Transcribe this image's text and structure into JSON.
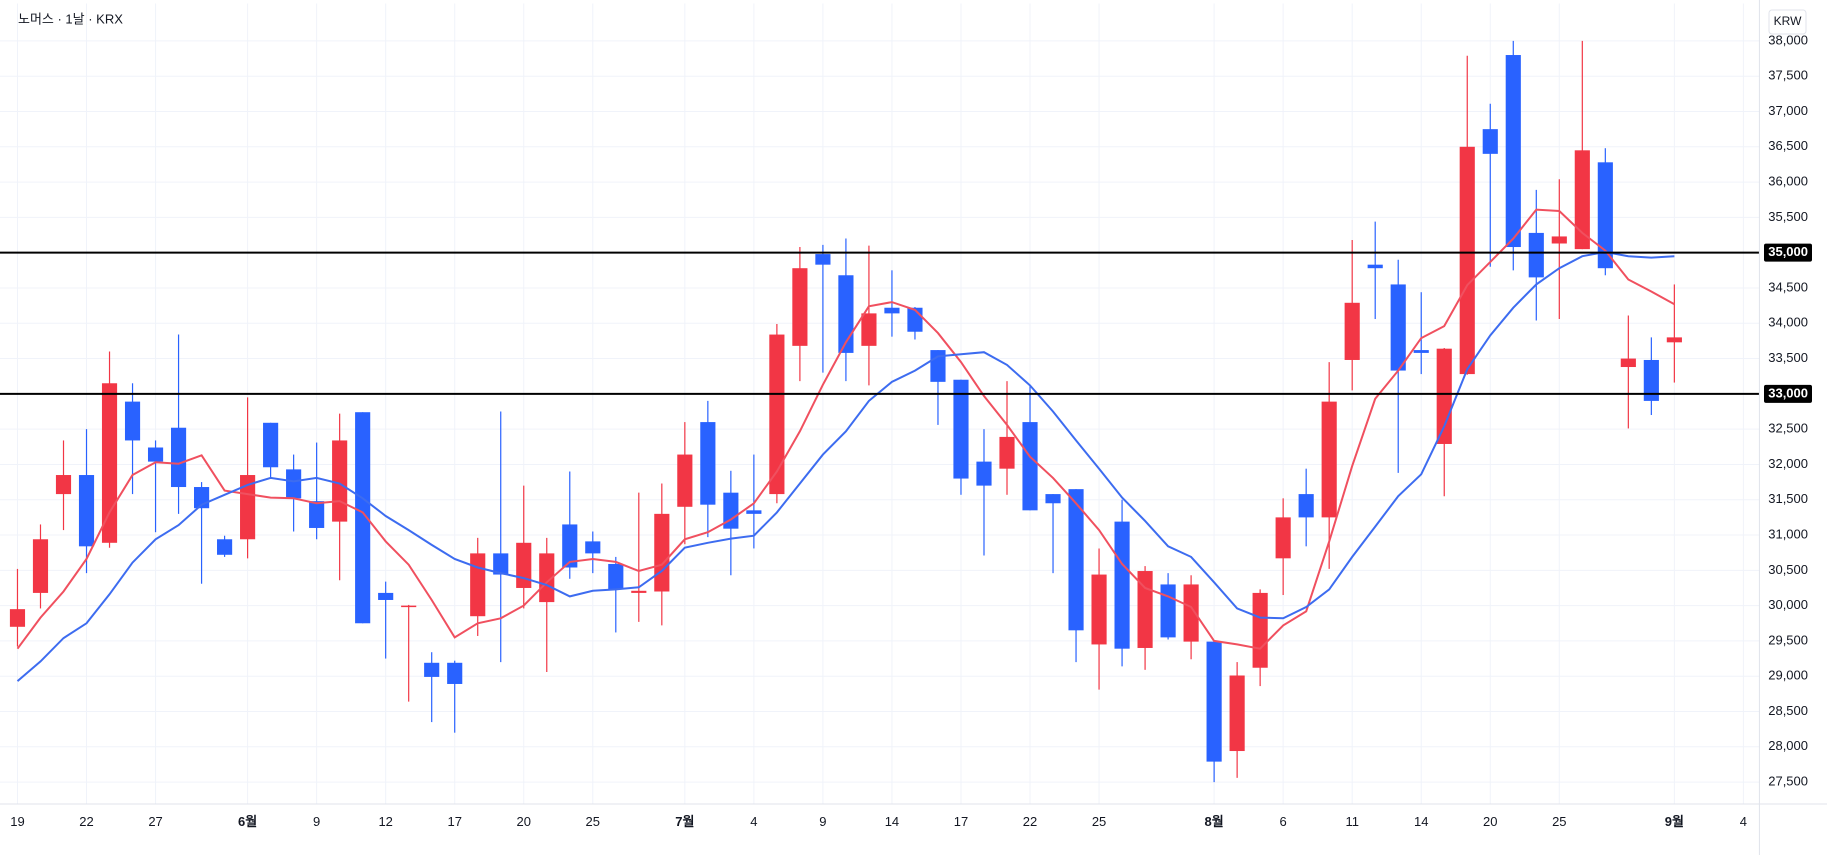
{
  "chart_data": {
    "type": "candlestick",
    "title": "노머스 · 1날 · KRX",
    "currency": "KRW",
    "up_color": "#f23645",
    "down_color": "#2962ff",
    "grid": true,
    "ylim": [
      27190,
      38530
    ],
    "yticks": [
      {
        "value": 27500,
        "label": "27,500"
      },
      {
        "value": 28000,
        "label": "28,000"
      },
      {
        "value": 28500,
        "label": "28,500"
      },
      {
        "value": 29000,
        "label": "29,000"
      },
      {
        "value": 29500,
        "label": "29,500"
      },
      {
        "value": 30000,
        "label": "30,000"
      },
      {
        "value": 30500,
        "label": "30,500"
      },
      {
        "value": 31000,
        "label": "31,000"
      },
      {
        "value": 31500,
        "label": "31,500"
      },
      {
        "value": 32000,
        "label": "32,000"
      },
      {
        "value": 32500,
        "label": "32,500"
      },
      {
        "value": 33000,
        "label": "33,000"
      },
      {
        "value": 33500,
        "label": "33,500"
      },
      {
        "value": 34000,
        "label": "34,000"
      },
      {
        "value": 34500,
        "label": "34,500"
      },
      {
        "value": 35000,
        "label": "35,000"
      },
      {
        "value": 35500,
        "label": "35,500"
      },
      {
        "value": 36000,
        "label": "36,000"
      },
      {
        "value": 36500,
        "label": "36,500"
      },
      {
        "value": 37000,
        "label": "37,000"
      },
      {
        "value": 37500,
        "label": "37,500"
      },
      {
        "value": 38000,
        "label": "38,000"
      }
    ],
    "xticks": [
      {
        "value": 0,
        "label": "19"
      },
      {
        "value": 3,
        "label": "22"
      },
      {
        "value": 6,
        "label": "27"
      },
      {
        "value": 10,
        "label": "6월"
      },
      {
        "value": 13,
        "label": "9"
      },
      {
        "value": 16,
        "label": "12"
      },
      {
        "value": 19,
        "label": "17"
      },
      {
        "value": 22,
        "label": "20"
      },
      {
        "value": 25,
        "label": "25"
      },
      {
        "value": 29,
        "label": "7월"
      },
      {
        "value": 32,
        "label": "4"
      },
      {
        "value": 35,
        "label": "9"
      },
      {
        "value": 38,
        "label": "14"
      },
      {
        "value": 41,
        "label": "17"
      },
      {
        "value": 44,
        "label": "22"
      },
      {
        "value": 47,
        "label": "25"
      },
      {
        "value": 52,
        "label": "8월"
      },
      {
        "value": 55,
        "label": "6"
      },
      {
        "value": 58,
        "label": "11"
      },
      {
        "value": 61,
        "label": "14"
      },
      {
        "value": 64,
        "label": "20"
      },
      {
        "value": 67,
        "label": "25"
      },
      {
        "value": 72,
        "label": "9월"
      },
      {
        "value": 75,
        "label": "4"
      }
    ],
    "horizontal_lines": [
      {
        "value": 35000,
        "label": "35,000"
      },
      {
        "value": 33000,
        "label": "33,000"
      }
    ],
    "open": [
      29700,
      30180,
      31580,
      31850,
      30890,
      32890,
      32240,
      32520,
      31680,
      30940,
      30940,
      32590,
      31930,
      31480,
      31190,
      32740,
      30180,
      29980,
      29190,
      29190,
      29850,
      30740,
      30250,
      30050,
      31150,
      30910,
      30590,
      30180,
      30200,
      31400,
      32600,
      31600,
      31350,
      31580,
      33680,
      34980,
      34680,
      33680,
      34220,
      34220,
      33620,
      33200,
      32040,
      31940,
      32600,
      31580,
      31650,
      29450,
      31190,
      29400,
      30300,
      29490,
      29490,
      27940,
      29120,
      30670,
      31580,
      31250,
      33480,
      34830,
      34550,
      33620,
      32290,
      33280,
      36750,
      37800,
      35280,
      35130,
      35050,
      36280,
      33380,
      33480,
      33730
    ],
    "high": [
      30520,
      31150,
      32340,
      32500,
      33600,
      33150,
      32340,
      33840,
      31750,
      30990,
      32950,
      32590,
      32140,
      32310,
      32720,
      32740,
      30340,
      30010,
      29340,
      29220,
      30960,
      32750,
      31700,
      30960,
      31900,
      31050,
      30690,
      31600,
      31730,
      32600,
      32900,
      31910,
      32140,
      33990,
      35080,
      35110,
      35200,
      35100,
      34750,
      34230,
      33620,
      33200,
      32500,
      33180,
      33130,
      31580,
      31650,
      30810,
      31500,
      30560,
      30460,
      30430,
      29490,
      29200,
      30230,
      31520,
      31940,
      33450,
      35180,
      35440,
      34900,
      34440,
      33650,
      37790,
      37110,
      38000,
      35890,
      36040,
      38000,
      36480,
      34110,
      33800,
      34550
    ],
    "low": [
      29420,
      29960,
      31070,
      30460,
      30820,
      31580,
      31040,
      31300,
      30310,
      30690,
      30670,
      31810,
      31050,
      30940,
      30360,
      29750,
      29250,
      28640,
      28350,
      28200,
      29570,
      29200,
      29960,
      29060,
      30380,
      30460,
      29620,
      29770,
      29720,
      30870,
      30970,
      30430,
      30810,
      31450,
      33180,
      33300,
      33180,
      33120,
      33810,
      33770,
      32560,
      31570,
      30710,
      31570,
      31350,
      30460,
      29200,
      28810,
      29140,
      29090,
      29520,
      29240,
      27500,
      27560,
      28860,
      30150,
      30840,
      30520,
      33050,
      34060,
      31880,
      33280,
      31550,
      33270,
      34800,
      34750,
      34040,
      34060,
      35050,
      34680,
      32510,
      32700,
      33160
    ],
    "close": [
      29950,
      30940,
      31850,
      30840,
      33150,
      32340,
      32040,
      31680,
      31380,
      30720,
      31850,
      31960,
      31520,
      31100,
      32340,
      29750,
      30080,
      30000,
      28990,
      28890,
      30740,
      30440,
      30890,
      30740,
      30540,
      30740,
      30230,
      30210,
      31300,
      32140,
      31430,
      31090,
      31300,
      33840,
      34780,
      34830,
      33580,
      34140,
      34140,
      33880,
      33170,
      31800,
      31700,
      32390,
      31350,
      31450,
      29650,
      30440,
      29390,
      30490,
      29550,
      30300,
      27790,
      29010,
      30180,
      31250,
      31250,
      32890,
      34290,
      34780,
      33330,
      33580,
      33640,
      36500,
      36400,
      35080,
      34650,
      35230,
      36450,
      34780,
      33500,
      32900,
      33800
    ],
    "moving_averages": [
      {
        "color": "#f0505f",
        "values": [
          29390,
          29830,
          30200,
          30660,
          31320,
          31850,
          32030,
          32010,
          32130,
          31630,
          31580,
          31530,
          31520,
          31450,
          31480,
          31320,
          30910,
          30580,
          30080,
          29550,
          29750,
          29820,
          30000,
          30330,
          30620,
          30660,
          30620,
          30490,
          30580,
          30940,
          31040,
          31220,
          31450,
          31900,
          32470,
          33130,
          33730,
          34240,
          34300,
          34190,
          33860,
          33450,
          32970,
          32560,
          32110,
          31810,
          31450,
          31070,
          30590,
          30250,
          30130,
          29980,
          29500,
          29450,
          29390,
          29720,
          29920,
          30910,
          31980,
          32930,
          33330,
          33790,
          33960,
          34540,
          34870,
          35200,
          35610,
          35590,
          35280,
          35030,
          34620,
          34450,
          34270
        ]
      },
      {
        "color": "#3d6cf0",
        "values": [
          28930,
          29210,
          29540,
          29750,
          30160,
          30610,
          30940,
          31140,
          31430,
          31570,
          31710,
          31810,
          31760,
          31810,
          31730,
          31520,
          31270,
          31070,
          30860,
          30660,
          30540,
          30460,
          30390,
          30290,
          30130,
          30210,
          30230,
          30260,
          30490,
          30820,
          30890,
          30950,
          30990,
          31320,
          31730,
          32140,
          32470,
          32900,
          33170,
          33330,
          33530,
          33560,
          33590,
          33410,
          33120,
          32750,
          32340,
          31940,
          31530,
          31200,
          30840,
          30690,
          30330,
          29960,
          29830,
          29820,
          29980,
          30230,
          30690,
          31120,
          31550,
          31860,
          32540,
          33350,
          33830,
          34220,
          34550,
          34780,
          34950,
          35010,
          34950,
          34930,
          34950
        ]
      }
    ]
  }
}
